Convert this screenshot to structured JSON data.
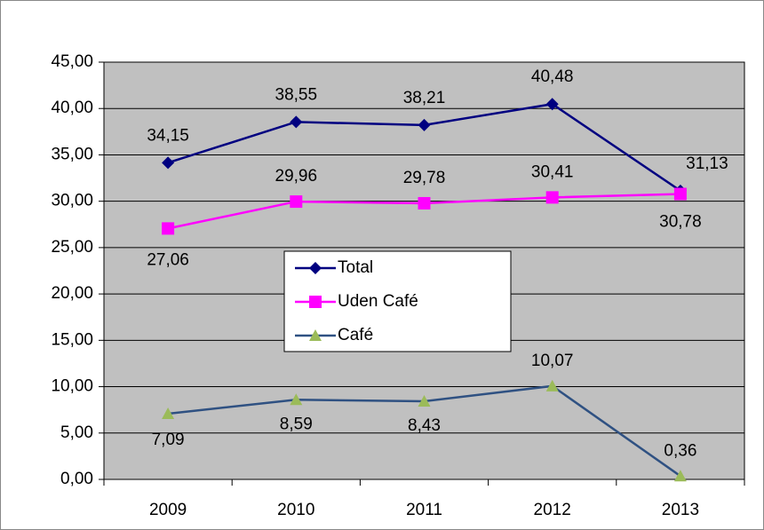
{
  "chart_data": {
    "type": "line",
    "categories": [
      "2009",
      "2010",
      "2011",
      "2012",
      "2013"
    ],
    "series": [
      {
        "name": "Total",
        "color": "#000080",
        "marker": "diamond",
        "marker_color": "#000080",
        "values": [
          34.15,
          38.55,
          38.21,
          40.48,
          31.13
        ],
        "value_labels": [
          "34,15",
          "38,55",
          "38,21",
          "40,48",
          "31,13"
        ]
      },
      {
        "name": "Uden Café",
        "color": "#ff00ff",
        "marker": "square",
        "marker_color": "#ff00ff",
        "values": [
          27.06,
          29.96,
          29.78,
          30.41,
          30.78
        ],
        "value_labels": [
          "27,06",
          "29,96",
          "29,78",
          "30,41",
          "30,78"
        ]
      },
      {
        "name": "Café",
        "color": "#2f5182",
        "marker": "triangle",
        "marker_color": "#9bbb59",
        "values": [
          7.09,
          8.59,
          8.43,
          10.07,
          0.36
        ],
        "value_labels": [
          "7,09",
          "8,59",
          "8,43",
          "10,07",
          "0,36"
        ]
      }
    ],
    "ylim": [
      0,
      45
    ],
    "yticks": [
      {
        "value": 0,
        "label": "0,00"
      },
      {
        "value": 5,
        "label": "5,00"
      },
      {
        "value": 10,
        "label": "10,00"
      },
      {
        "value": 15,
        "label": "15,00"
      },
      {
        "value": 20,
        "label": "20,00"
      },
      {
        "value": 25,
        "label": "25,00"
      },
      {
        "value": 30,
        "label": "30,00"
      },
      {
        "value": 35,
        "label": "35,00"
      },
      {
        "value": 40,
        "label": "40,00"
      },
      {
        "value": 45,
        "label": "45,00"
      }
    ],
    "grid": true,
    "plot_background": "#c0c0c0",
    "legend": "center"
  }
}
